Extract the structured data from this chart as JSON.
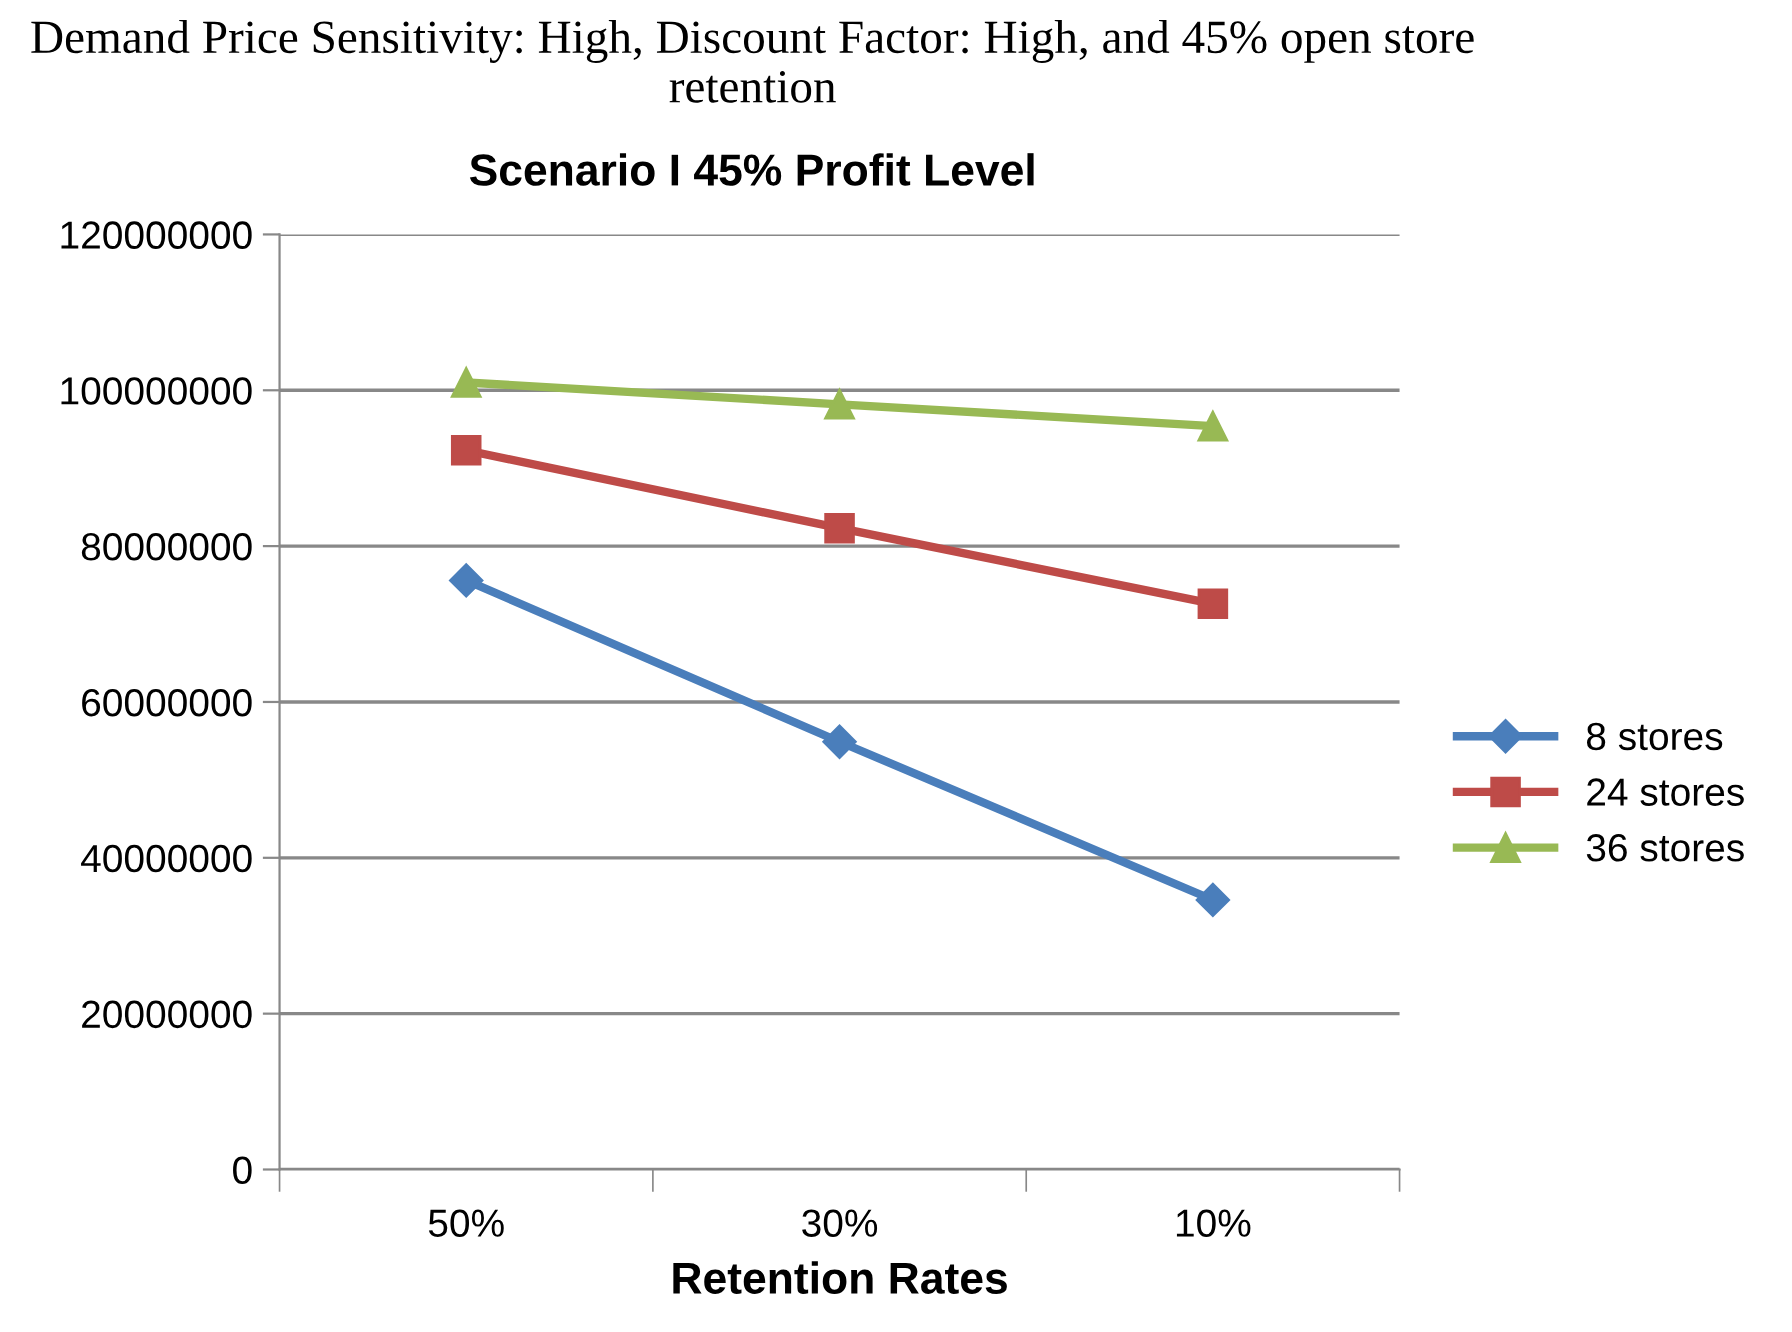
{
  "chart_data": {
    "type": "line",
    "title": "Demand Price Sensitivity: High, Discount Factor: High, and 45% open store retention",
    "subtitle": "Scenario I 45% Profit Level",
    "xlabel": "Retention Rates",
    "categories": [
      "50%",
      "30%",
      "10%"
    ],
    "series": [
      {
        "name": "8 stores",
        "color": "#4a7ebb",
        "marker": "diamond",
        "values": [
          75600000,
          54900000,
          34600000
        ]
      },
      {
        "name": "24 stores",
        "color": "#be4b48",
        "marker": "square",
        "values": [
          92300000,
          82300000,
          72600000
        ]
      },
      {
        "name": "36 stores",
        "color": "#98b954",
        "marker": "triangle",
        "values": [
          101000000,
          98200000,
          95400000
        ]
      }
    ],
    "ylim": [
      0,
      120000000
    ],
    "yticks": [
      0,
      20000000,
      40000000,
      60000000,
      80000000,
      100000000,
      120000000
    ],
    "grid": "y",
    "legend": "right",
    "line_style": "solid"
  }
}
